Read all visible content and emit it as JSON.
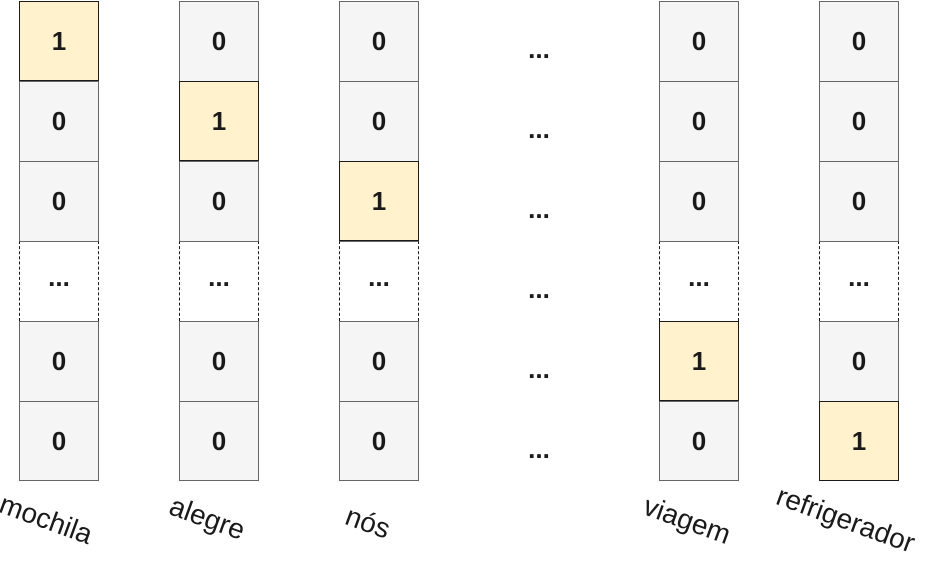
{
  "columns": [
    {
      "word": "mochila",
      "values": [
        "1",
        "0",
        "0",
        "...",
        "0",
        "0"
      ],
      "hot": 0
    },
    {
      "word": "alegre",
      "values": [
        "0",
        "1",
        "0",
        "...",
        "0",
        "0"
      ],
      "hot": 1
    },
    {
      "word": "nós",
      "values": [
        "0",
        "0",
        "1",
        "...",
        "0",
        "0"
      ],
      "hot": 2
    },
    {
      "word": "viagem",
      "values": [
        "0",
        "0",
        "0",
        "...",
        "1",
        "0"
      ],
      "hot": 4
    },
    {
      "word": "refrigerador",
      "values": [
        "0",
        "0",
        "0",
        "...",
        "0",
        "1"
      ],
      "hot": 5
    }
  ],
  "ellipsis_column": [
    "...",
    "...",
    "...",
    "...",
    "...",
    "..."
  ],
  "colors": {
    "highlight_fill": "#fff2cc",
    "cell_fill": "#f5f5f5",
    "cell_border": "#666666",
    "text": "#1a1a1a"
  }
}
